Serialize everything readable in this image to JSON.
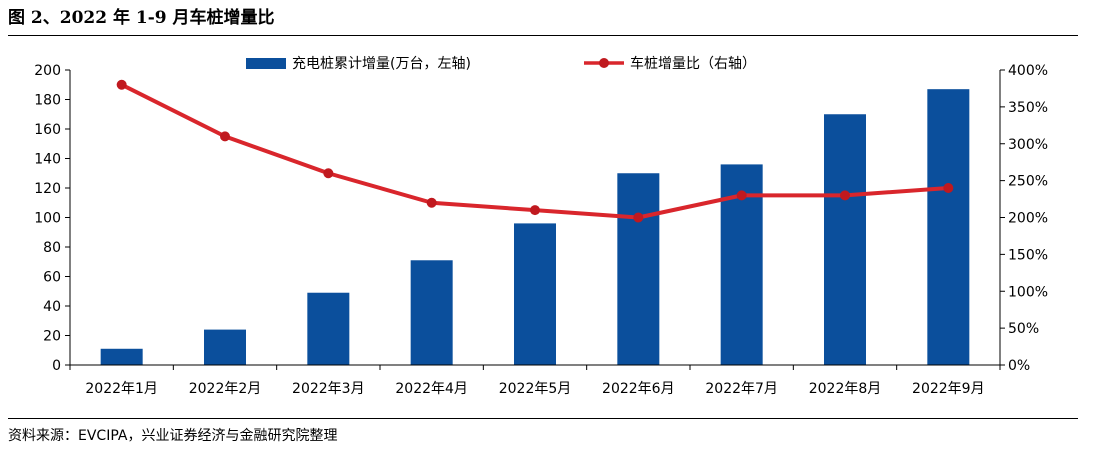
{
  "figure": {
    "title": "图 2、2022 年 1-9 月车桩增量比",
    "source": "资料来源：EVCIPA，兴业证券经济与金融研究院整理"
  },
  "colors": {
    "bar": "#0B4F9C",
    "line": "#D9262C",
    "marker": "#C0191F",
    "axis": "#000000"
  },
  "chart_data": {
    "type": "bar",
    "categories": [
      "2022年1月",
      "2022年2月",
      "2022年3月",
      "2022年4月",
      "2022年5月",
      "2022年6月",
      "2022年7月",
      "2022年8月",
      "2022年9月"
    ],
    "series": [
      {
        "name": "充电桩累计增量(万台，左轴)",
        "type": "bar",
        "axis": "left",
        "values": [
          11,
          24,
          49,
          71,
          96,
          130,
          136,
          170,
          187
        ]
      },
      {
        "name": "车桩增量比（右轴）",
        "type": "line",
        "axis": "right",
        "values": [
          3.8,
          3.1,
          2.6,
          2.2,
          2.1,
          2.0,
          2.3,
          2.3,
          2.4
        ]
      }
    ],
    "left_axis": {
      "ylim": [
        0,
        200
      ],
      "ticks": [
        "0",
        "20",
        "40",
        "60",
        "80",
        "100",
        "120",
        "140",
        "160",
        "180",
        "200"
      ]
    },
    "right_axis": {
      "ylim": [
        0,
        4
      ],
      "ticks": [
        "0%",
        "50%",
        "100%",
        "150%",
        "200%",
        "250%",
        "300%",
        "350%",
        "400%"
      ]
    },
    "legend_position": "top-center",
    "grid": false
  }
}
